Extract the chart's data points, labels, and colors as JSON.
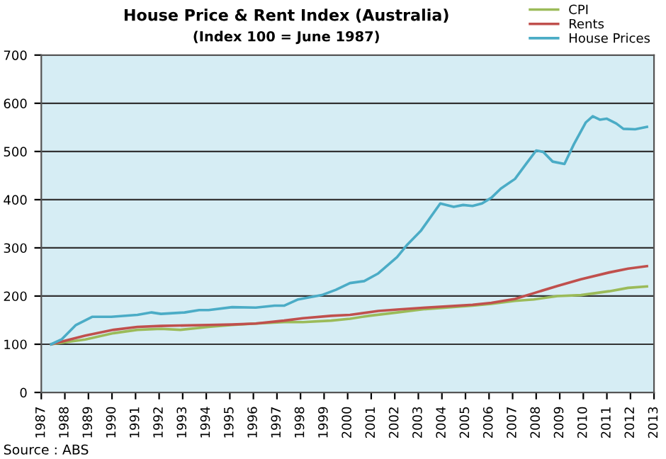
{
  "chart_data": {
    "type": "line",
    "title": "House Price & Rent Index (Australia)",
    "subtitle": "(Index 100 = June 1987)",
    "annotations": [
      "Source : ABS"
    ],
    "xlim": [
      1987,
      2013
    ],
    "xticks": [
      1987,
      1988,
      1989,
      1990,
      1991,
      1992,
      1993,
      1994,
      1995,
      1996,
      1997,
      1998,
      1999,
      2000,
      2001,
      2002,
      2003,
      2004,
      2005,
      2006,
      2007,
      2008,
      2009,
      2010,
      2011,
      2012,
      2013
    ],
    "ylim": [
      0,
      700
    ],
    "yticks": [
      0,
      100,
      200,
      300,
      400,
      500,
      600,
      700
    ],
    "grid": "y",
    "legend": "top right",
    "marker": "none",
    "line_style": "solid",
    "series": [
      {
        "name": "CPI",
        "color": "#9bbb59",
        "x": [
          1987.42,
          1988.87,
          1990.07,
          1991.08,
          1992.08,
          1992.9,
          1994.1,
          1995.1,
          1996.1,
          1997.3,
          1998.1,
          1999.3,
          2000.1,
          2000.9,
          2002.1,
          2003.3,
          2005.3,
          2006.1,
          2007.1,
          2007.9,
          2008.9,
          2009.9,
          2011.1,
          2011.9,
          2012.7
        ],
        "values": [
          100,
          110,
          123,
          130,
          132,
          130,
          136,
          140,
          143,
          146,
          146,
          149,
          153,
          159,
          166,
          173,
          180,
          184,
          190,
          193,
          200,
          202,
          210,
          217,
          220
        ]
      },
      {
        "name": "Rents",
        "color": "#c0504d",
        "x": [
          1987.42,
          1988.87,
          1990.07,
          1991.08,
          1992.08,
          1994.1,
          1995.1,
          1996.1,
          1997.3,
          1998.1,
          1999.3,
          2000.1,
          2001.3,
          2002.1,
          2003.3,
          2005.3,
          2006.1,
          2007.1,
          2007.9,
          2008.9,
          2009.9,
          2011.1,
          2011.9,
          2012.7
        ],
        "values": [
          100,
          118,
          130,
          136,
          138,
          140,
          141,
          143,
          149,
          154,
          159,
          161,
          169,
          172,
          176,
          182,
          186,
          194,
          206,
          221,
          235,
          249,
          257,
          262
        ]
      },
      {
        "name": "House Prices",
        "color": "#4bacc6",
        "x": [
          1987.42,
          1987.86,
          1988.47,
          1989.17,
          1989.97,
          1991.08,
          1991.68,
          1992.08,
          1993.08,
          1993.7,
          1994.1,
          1995.1,
          1996.1,
          1996.9,
          1997.3,
          1997.9,
          1998.9,
          1999.5,
          2000.1,
          2000.7,
          2001.3,
          2001.7,
          2002.1,
          2002.5,
          2003.1,
          2003.93,
          2004.5,
          2004.9,
          2005.3,
          2005.7,
          2006.1,
          2006.5,
          2007.1,
          2007.6,
          2008.0,
          2008.3,
          2008.7,
          2009.2,
          2009.6,
          2010.1,
          2010.4,
          2010.7,
          2011.0,
          2011.4,
          2011.7,
          2012.2,
          2012.7
        ],
        "values": [
          100,
          110,
          140,
          157,
          157,
          161,
          166,
          163,
          166,
          171,
          171,
          177,
          176,
          180,
          180,
          193,
          202,
          213,
          227,
          231,
          247,
          264,
          281,
          305,
          335,
          392,
          385,
          389,
          387,
          392,
          404,
          423,
          443,
          476,
          502,
          499,
          479,
          474,
          515,
          560,
          573,
          566,
          568,
          558,
          547,
          546,
          551
        ]
      }
    ]
  }
}
